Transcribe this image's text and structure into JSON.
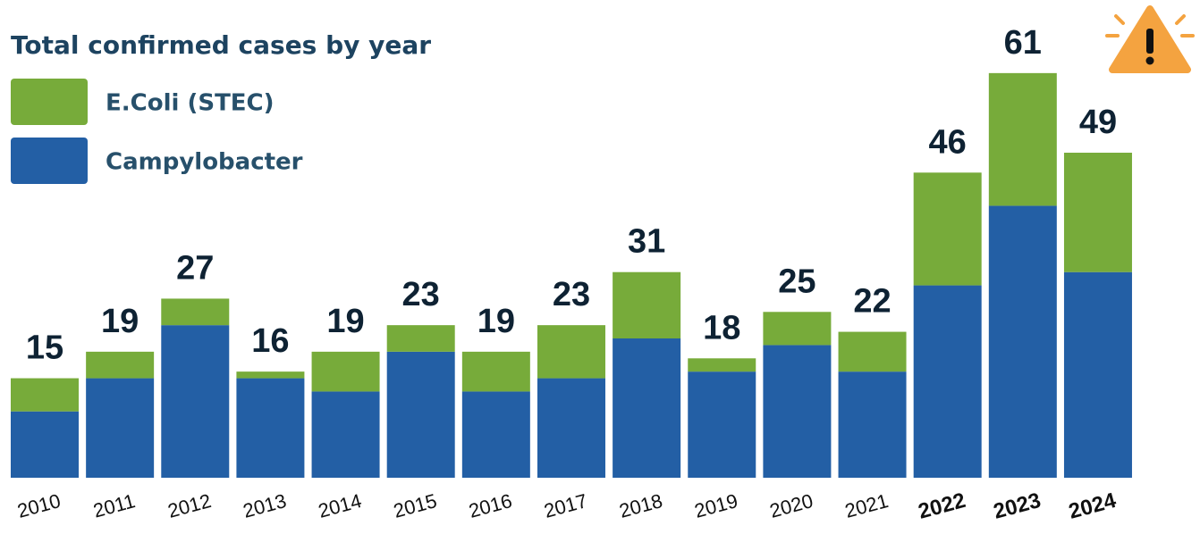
{
  "chart_data": {
    "type": "stacked_bar",
    "title": "Total confirmed cases by year",
    "categories": [
      "2010",
      "2011",
      "2012",
      "2013",
      "2014",
      "2015",
      "2016",
      "2017",
      "2018",
      "2019",
      "2020",
      "2021",
      "2022",
      "2023",
      "2024"
    ],
    "series": [
      {
        "name": "Campylobacter",
        "color": "#235fa5",
        "values": [
          10,
          15,
          23,
          15,
          13,
          19,
          13,
          15,
          21,
          16,
          20,
          16,
          29,
          41,
          31
        ]
      },
      {
        "name": "E.Coli (STEC)",
        "color": "#77ab3a",
        "values": [
          5,
          4,
          4,
          1,
          6,
          4,
          6,
          8,
          10,
          2,
          5,
          6,
          17,
          20,
          18
        ]
      }
    ],
    "totals": [
      15,
      19,
      27,
      16,
      19,
      23,
      19,
      23,
      31,
      18,
      25,
      22,
      46,
      61,
      49
    ],
    "emphasized": [
      12,
      13,
      14
    ],
    "ylim": [
      0,
      70
    ]
  }
}
